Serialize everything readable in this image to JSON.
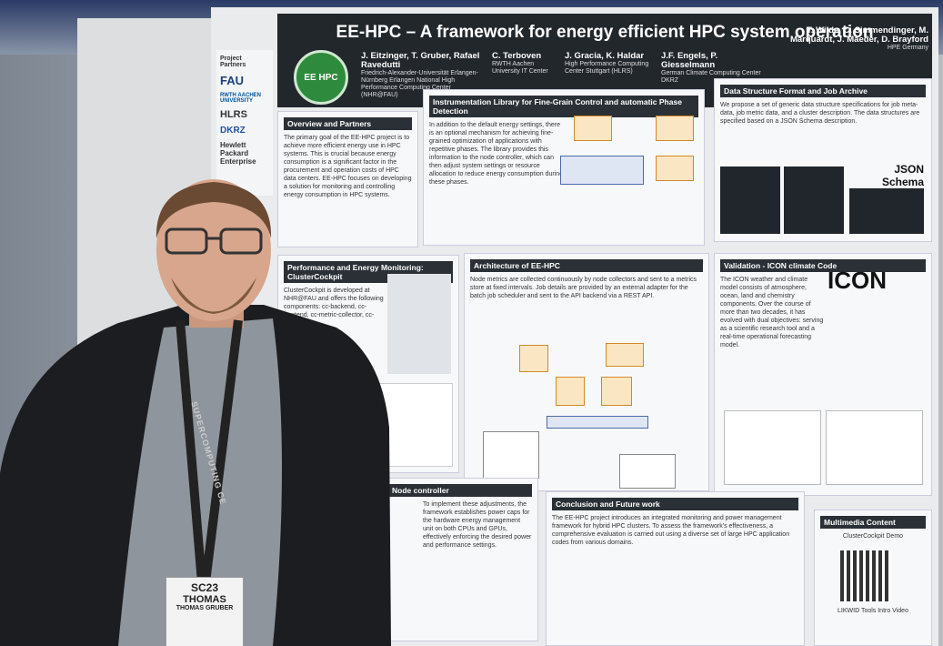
{
  "poster": {
    "title": "EE-HPC – A framework for energy efficient HPC system operation",
    "logo": "EE HPC",
    "partners": {
      "heading": "Project Partners",
      "logos": [
        "FAU",
        "RWTH AACHEN UNIVERSITY",
        "HLRS",
        "DKRZ",
        "Hewlett Packard Enterprise"
      ]
    },
    "authors": [
      {
        "names": "J. Eitzinger, T. Gruber, Rafael Ravedutti",
        "affiliation": "Friedrich-Alexander-Universität Erlangen-Nürnberg Erlangen National High Performance Computing Center (NHR@FAU)"
      },
      {
        "names": "C. Terboven",
        "affiliation": "RWTH Aachen University IT Center"
      },
      {
        "names": "J. Gracia, K. Haldar",
        "affiliation": "High Performance Computing Center Stuttgart (HLRS)"
      },
      {
        "names": "J.F. Engels, P. Giesselmann",
        "affiliation": "German Climate Computing Center DKRZ"
      },
      {
        "names": "T. Wilde, C. Simmendinger, M. Marquardt, J. Maeder, D. Brayford",
        "affiliation": "HPE Germany"
      }
    ],
    "sections": [
      {
        "heading": "Overview and Partners",
        "body": "The primary goal of the EE-HPC project is to achieve more efficient energy use in HPC systems. This is crucial because energy consumption is a significant factor in the procurement and operation costs of HPC data centers. EE-HPC focuses on developing a solution for monitoring and controlling energy consumption in HPC systems."
      },
      {
        "heading": "Instrumentation Library for Fine-Grain Control and automatic Phase Detection",
        "body": "In addition to the default energy settings, there is an optional mechanism for achieving fine-grained optimization of applications with repetitive phases. The library provides this information to the node controller, which can then adjust system settings or resource allocation to reduce energy consumption during these phases."
      },
      {
        "heading": "Data Structure Format and Job Archive",
        "body": "We propose a set of generic data structure specifications for job meta-data, job metric data, and a cluster description. The data structures are specified based on a JSON Schema description."
      },
      {
        "heading": "Performance and Energy Monitoring: ClusterCockpit",
        "body": "ClusterCockpit is developed at NHR@FAU and offers the following components: cc-backend, cc-frontend, cc-metric-collector, cc-metric-store."
      },
      {
        "heading": "Architecture of EE-HPC",
        "body": "Node metrics are collected continuously by node collectors and sent to a metrics store at fixed intervals. Job details are provided by an external adapter for the batch job scheduler and sent to the API backend via a REST API."
      },
      {
        "heading": "Validation - ICON climate Code",
        "body": "The ICON weather and climate model consists of atmosphere, ocean, land and chemistry components. Over the course of more than two decades, it has evolved with dual objectives: serving as a scientific research tool and a real-time operational forecasting model."
      },
      {
        "heading": "Node controller",
        "body": "To implement these adjustments, the framework establishes power caps for the hardware energy management unit on both CPUs and GPUs, effectively enforcing the desired power and performance settings."
      },
      {
        "heading": "Conclusion and Future work",
        "body": "The EE-HPC project introduces an integrated monitoring and power management framework for hybrid HPC clusters. To assess the framework's effectiveness, a comprehensive evaluation is carried out using a diverse set of large HPC application codes from various domains."
      },
      {
        "heading": "Multimedia Content",
        "body": "ClusterCockpit Demo"
      }
    ],
    "icons": {
      "json": "JSON Schema",
      "icon": "ICON",
      "video": "LIKWID Tools Intro Video"
    }
  },
  "badge": {
    "event": "SC23",
    "first_name": "THOMAS",
    "full_name": "THOMAS GRUBER"
  },
  "lanyard": "SUPERCOMPUTING CE"
}
